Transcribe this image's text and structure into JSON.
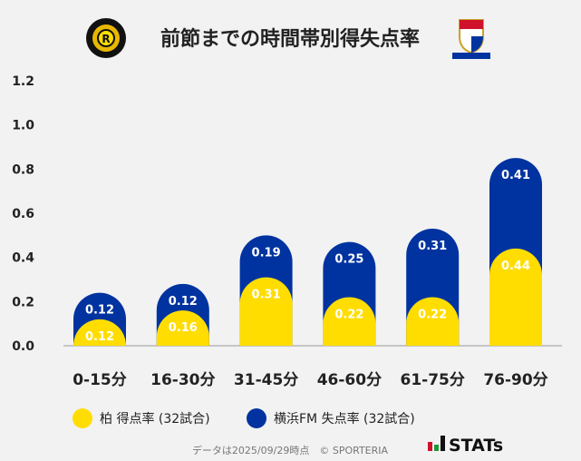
{
  "chart_data": {
    "type": "bar",
    "stacked": true,
    "title": "前節までの時間帯別得失点率",
    "categories": [
      "0-15分",
      "16-30分",
      "31-45分",
      "46-60分",
      "61-75分",
      "76-90分"
    ],
    "series": [
      {
        "name": "柏 得点率 (32試合)",
        "color": "#FFDD00",
        "values": [
          0.12,
          0.16,
          0.31,
          0.22,
          0.22,
          0.44
        ]
      },
      {
        "name": "横浜FM 失点率 (32試合)",
        "color": "#0033A0",
        "values": [
          0.12,
          0.12,
          0.19,
          0.25,
          0.31,
          0.41
        ]
      }
    ],
    "yticks": [
      "0.0",
      "0.2",
      "0.4",
      "0.6",
      "0.8",
      "1.0",
      "1.2"
    ],
    "ylim": [
      0,
      1.2
    ],
    "grid": false,
    "legend": "bottom"
  },
  "logos": {
    "left": "KASHIWA REYSOL",
    "right": "Yokohama F·Marinos"
  },
  "footer": {
    "note": "データは2025/09/29時点　© SPORTERIA",
    "brand": "STATs"
  }
}
